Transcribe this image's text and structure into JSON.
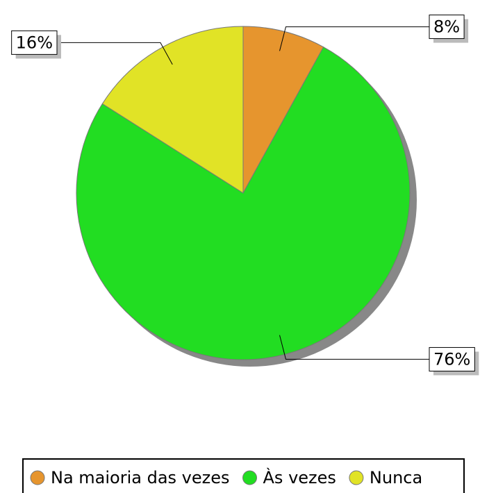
{
  "chart_data": {
    "type": "pie",
    "categories": [
      "Na maioria das vezes",
      "Às vezes",
      "Nunca"
    ],
    "values": [
      8,
      76,
      16
    ],
    "value_labels": [
      "8%",
      "76%",
      "16%"
    ],
    "colors": [
      "#e6952e",
      "#22dd22",
      "#e1e326"
    ],
    "legend": "bottom"
  }
}
